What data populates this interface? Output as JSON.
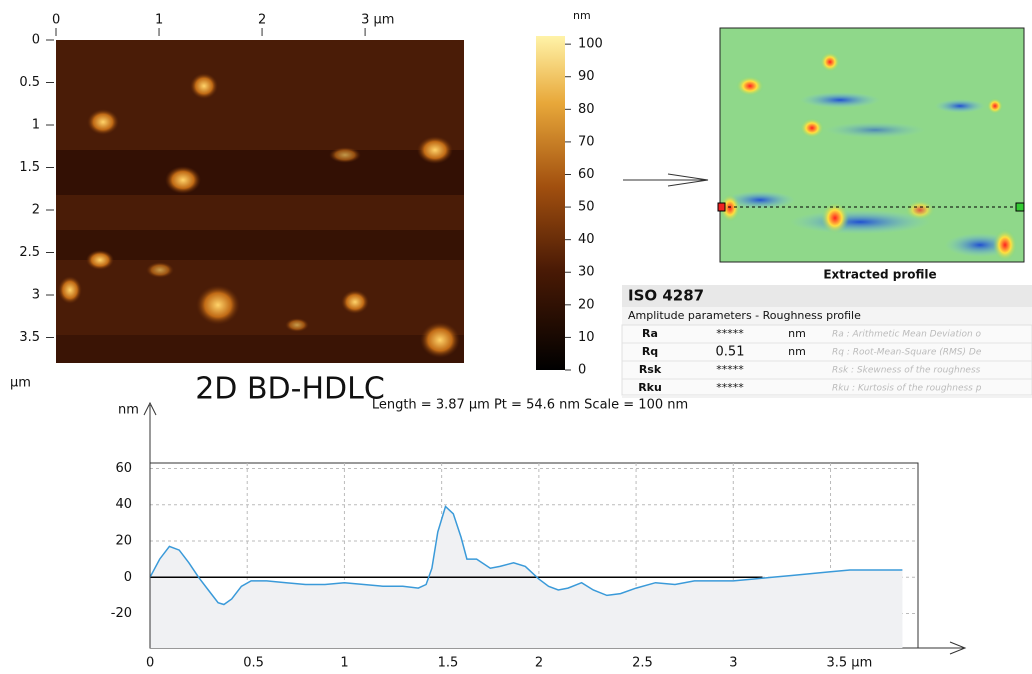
{
  "afm_image": {
    "title": "2D BD-HDLC",
    "xlim": [
      0,
      3.96
    ],
    "xticks": [
      0,
      1,
      2,
      {
        "value": 3,
        "label": "3 µm"
      }
    ],
    "ylim": [
      0,
      3.8
    ],
    "yticks": [
      0,
      0.5,
      1,
      1.5,
      2,
      2.5,
      3,
      3.5
    ],
    "y_unit": "µm"
  },
  "colorbar": {
    "unit": "nm",
    "lim": [
      0,
      102.5
    ],
    "ticks": [
      0,
      10,
      20,
      30,
      40,
      50,
      60,
      70,
      80,
      90,
      100
    ]
  },
  "extracted_image": {
    "caption": "Extracted profile"
  },
  "table": {
    "title": "ISO 4287",
    "subtitle": "Amplitude parameters - Roughness profile",
    "rows": [
      {
        "param": "Ra",
        "value": "*****",
        "unit": "nm",
        "description": "Ra : Arithmetic Mean Deviation o"
      },
      {
        "param": "Rq",
        "value": "0.51",
        "unit": "nm",
        "description": "Rq : Root-Mean-Square (RMS) De"
      },
      {
        "param": "Rsk",
        "value": "*****",
        "description": "Rsk : Skewness of the roughness"
      },
      {
        "param": "Rku",
        "value": "*****",
        "description": "Rku : Kurtosis of the roughness p"
      }
    ]
  },
  "chart_data": {
    "type": "line",
    "title": "Length = 3.87 µm  Pt = 54.6 nm  Scale = 100 nm",
    "y_unit": "nm",
    "x": [
      0,
      0.05,
      0.1,
      0.15,
      0.2,
      0.25,
      0.3,
      0.35,
      0.38,
      0.42,
      0.47,
      0.52,
      0.6,
      0.7,
      0.8,
      0.9,
      1.0,
      1.1,
      1.2,
      1.3,
      1.38,
      1.42,
      1.45,
      1.48,
      1.52,
      1.56,
      1.6,
      1.63,
      1.68,
      1.75,
      1.8,
      1.87,
      1.93,
      2.0,
      2.05,
      2.1,
      2.15,
      2.22,
      2.28,
      2.35,
      2.42,
      2.5,
      2.6,
      2.7,
      2.8,
      2.9,
      3.0,
      3.1,
      3.2,
      3.3,
      3.4,
      3.5,
      3.6,
      3.7,
      3.8,
      3.87
    ],
    "series": [
      {
        "color": "#3a9ad9",
        "values": [
          0,
          10,
          17,
          15,
          8,
          0,
          -7,
          -14,
          -15,
          -12,
          -5,
          -2,
          -2,
          -3,
          -4,
          -4,
          -3,
          -4,
          -5,
          -5,
          -6,
          -4,
          5,
          25,
          39,
          35,
          22,
          10,
          10,
          5,
          6,
          8,
          6,
          -1,
          -5,
          -7,
          -6,
          -3,
          -7,
          -10,
          -9,
          -6,
          -3,
          -4,
          -2,
          -2,
          -2,
          -1,
          0,
          1,
          2,
          3,
          4,
          4,
          4,
          4
        ]
      }
    ],
    "mean_line": {
      "y": 0,
      "x_end": 3.15
    },
    "xlim": [
      0,
      3.95
    ],
    "xticks": [
      0,
      0.5,
      1,
      1.5,
      2,
      2.5,
      3,
      {
        "value": 3.5,
        "label": "3.5 µm"
      }
    ],
    "ylim": [
      -39,
      63
    ],
    "yticks": [
      -20,
      0,
      20,
      40,
      60
    ],
    "grid": true
  }
}
